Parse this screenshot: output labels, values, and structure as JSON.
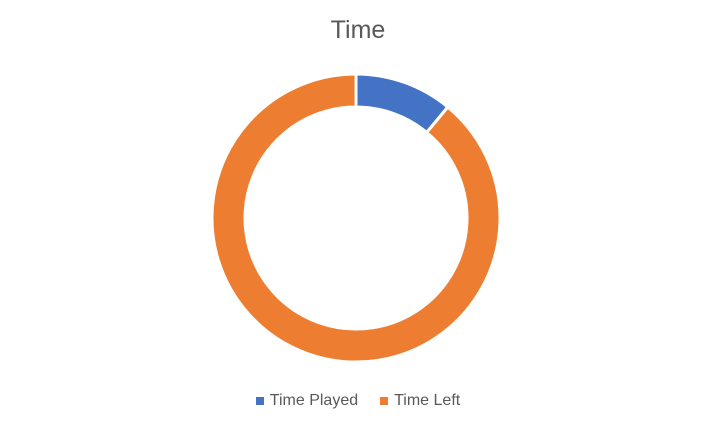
{
  "chart_data": {
    "type": "pie",
    "variant": "doughnut",
    "title": "Time",
    "categories": [
      "Time Played",
      "Time Left"
    ],
    "values": [
      11,
      89
    ],
    "colors": [
      "#4472C4",
      "#ED7D31"
    ],
    "legend_position": "bottom"
  }
}
